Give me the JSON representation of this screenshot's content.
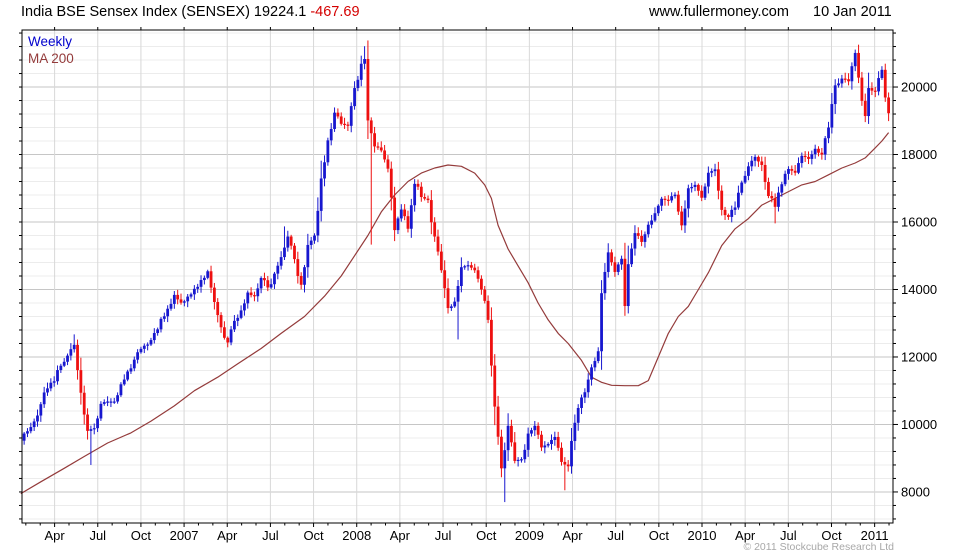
{
  "header": {
    "title": "India BSE Sensex Index (SENSEX)",
    "last": "19224.1",
    "change": "-467.69",
    "site": "www.fullermoney.com",
    "date": "10 Jan 2011"
  },
  "legend": {
    "series": "Weekly",
    "ma": "MA 200"
  },
  "footer": {
    "copyright": "© 2011 Stockcube Research Ltd"
  },
  "colors": {
    "up": "#1717cf",
    "down": "#ee1010",
    "ma": "#943b3b",
    "grid_major": "#c6c6c6",
    "grid_minor": "#ececec",
    "grid_vertical": "#d8d8d8",
    "axis": "#000000",
    "change_text": "#d40000",
    "legend_series": "#0000cc",
    "copyright_text": "#a8a8a8"
  },
  "chart_data": {
    "type": "candlestick",
    "interval": "weekly",
    "title": "India BSE Sensex Index (SENSEX)",
    "last_price": 19224.1,
    "change": -467.69,
    "y_axis": {
      "min": 7080,
      "max": 21690,
      "major_tick_step": 2000,
      "minor_tick_step": 400,
      "major_ticks": [
        8000,
        10000,
        12000,
        14000,
        16000,
        18000,
        20000
      ]
    },
    "x_axis": {
      "quarter_labels": [
        "Apr",
        "Jul",
        "Oct",
        "2007",
        "Apr",
        "Jul",
        "Oct",
        "2008",
        "Apr",
        "Jul",
        "Oct",
        "2009",
        "Apr",
        "Jul",
        "Oct",
        "2010",
        "Apr",
        "Jul",
        "Oct",
        "2011"
      ],
      "start_week": "2006-01-20",
      "weeks_total": 261
    },
    "close_anchors_biweekly": [
      9520,
      9800,
      10090,
      10600,
      11070,
      11280,
      11740,
      12040,
      12360,
      10940,
      9810,
      9890,
      10610,
      10680,
      10680,
      11190,
      11570,
      11920,
      12240,
      12370,
      12710,
      13130,
      13430,
      13840,
      13610,
      13790,
      14020,
      14280,
      14540,
      13630,
      12880,
      12430,
      13070,
      13380,
      13910,
      13800,
      14340,
      14060,
      14470,
      14960,
      15570,
      14900,
      14140,
      15320,
      15600,
      17290,
      18420,
      19240,
      18910,
      18850,
      19970,
      20690,
      19010,
      18240,
      18120,
      17580,
      15760,
      16370,
      15800,
      17130,
      16740,
      16650,
      15570,
      14570,
      13450,
      13640,
      14660,
      14720,
      14570,
      14000,
      13100,
      10530,
      8700,
      9960,
      8920,
      8970,
      9730,
      9960,
      9320,
      9420,
      9630,
      8890,
      8760,
      10050,
      10800,
      11330,
      11880,
      13890,
      15100,
      14520,
      14910,
      14750,
      15670,
      15410,
      15920,
      16260,
      16690,
      16640,
      16810,
      15900,
      17000,
      17100,
      16720,
      17460,
      17560,
      16360,
      16150,
      16430,
      17170,
      17650,
      17930,
      17690,
      16770,
      16450,
      17120,
      17570,
      17460,
      17960,
      17870,
      18170,
      18000,
      18800,
      20050,
      20250,
      20170,
      21010,
      19590,
      19970,
      19870,
      20510,
      19224
    ],
    "close_overrides": [
      [
        103,
        20830
      ],
      [
        173,
        12170
      ],
      [
        181,
        13510
      ],
      [
        253,
        19140
      ],
      [
        259,
        19690
      ]
    ],
    "wick_overrides": [
      [
        16,
        "h",
        12670
      ],
      [
        21,
        "l",
        8800
      ],
      [
        79,
        "h",
        15870
      ],
      [
        103,
        "h",
        21210
      ],
      [
        105,
        "l",
        15330
      ],
      [
        131,
        "l",
        12520
      ],
      [
        145,
        "l",
        7700
      ],
      [
        163,
        "l",
        8050
      ],
      [
        181,
        "l",
        13220
      ],
      [
        226,
        "l",
        15960
      ],
      [
        250,
        "h",
        21110
      ],
      [
        253,
        "l",
        18960
      ]
    ],
    "ma200_points": [
      [
        0,
        7950
      ],
      [
        6,
        8300
      ],
      [
        13,
        8700
      ],
      [
        19,
        9050
      ],
      [
        26,
        9450
      ],
      [
        33,
        9750
      ],
      [
        39,
        10100
      ],
      [
        46,
        10550
      ],
      [
        52,
        11000
      ],
      [
        59,
        11400
      ],
      [
        65,
        11800
      ],
      [
        72,
        12250
      ],
      [
        78,
        12700
      ],
      [
        85,
        13200
      ],
      [
        91,
        13800
      ],
      [
        96,
        14400
      ],
      [
        100,
        15000
      ],
      [
        104,
        15600
      ],
      [
        108,
        16300
      ],
      [
        112,
        16800
      ],
      [
        116,
        17200
      ],
      [
        120,
        17450
      ],
      [
        124,
        17600
      ],
      [
        128,
        17690
      ],
      [
        132,
        17650
      ],
      [
        136,
        17450
      ],
      [
        139,
        17100
      ],
      [
        141,
        16700
      ],
      [
        143,
        15900
      ],
      [
        146,
        15200
      ],
      [
        149,
        14700
      ],
      [
        152,
        14200
      ],
      [
        155,
        13600
      ],
      [
        158,
        13100
      ],
      [
        161,
        12700
      ],
      [
        164,
        12400
      ],
      [
        168,
        11900
      ],
      [
        171,
        11400
      ],
      [
        174,
        11250
      ],
      [
        177,
        11160
      ],
      [
        181,
        11150
      ],
      [
        185,
        11150
      ],
      [
        188,
        11300
      ],
      [
        191,
        12000
      ],
      [
        194,
        12700
      ],
      [
        197,
        13200
      ],
      [
        200,
        13500
      ],
      [
        203,
        14000
      ],
      [
        206,
        14500
      ],
      [
        210,
        15300
      ],
      [
        214,
        15800
      ],
      [
        218,
        16100
      ],
      [
        222,
        16500
      ],
      [
        226,
        16700
      ],
      [
        230,
        16900
      ],
      [
        234,
        17100
      ],
      [
        238,
        17200
      ],
      [
        242,
        17400
      ],
      [
        246,
        17600
      ],
      [
        250,
        17750
      ],
      [
        253,
        17900
      ],
      [
        256,
        18200
      ],
      [
        258,
        18400
      ],
      [
        260,
        18650
      ]
    ]
  }
}
